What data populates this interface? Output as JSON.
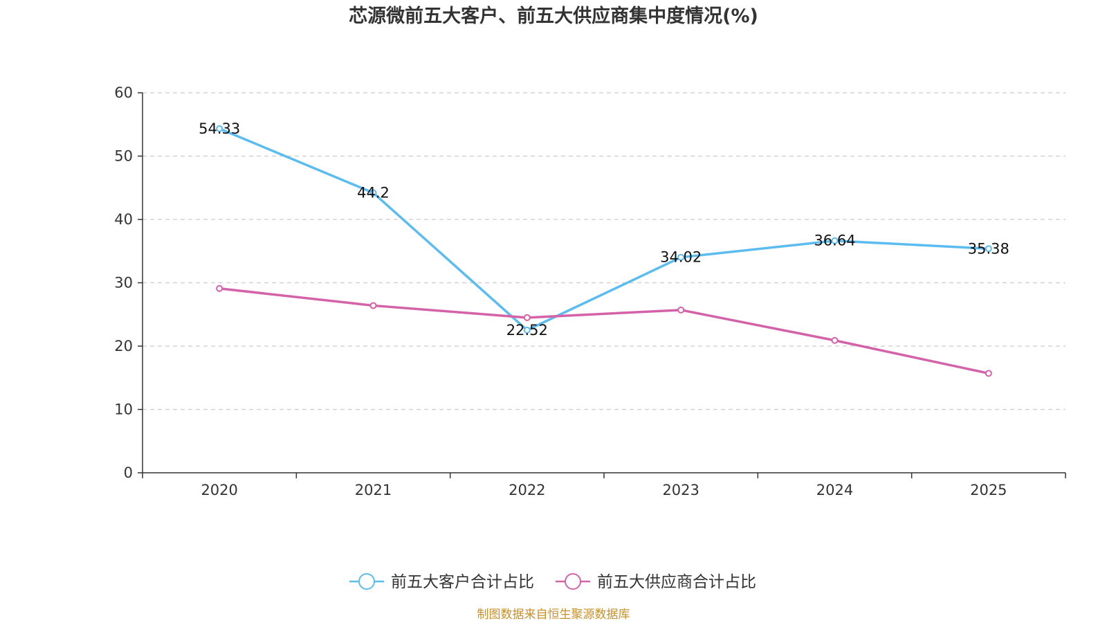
{
  "chart_data": {
    "type": "line",
    "title": "芯源微前五大客户、前五大供应商集中度情况(%)",
    "categories": [
      "2020",
      "2021",
      "2022",
      "2023",
      "2024",
      "2025"
    ],
    "ylim": [
      0,
      60
    ],
    "yticks": [
      0,
      10,
      20,
      30,
      40,
      50,
      60
    ],
    "grid": true,
    "legend_position": "bottom",
    "series": [
      {
        "name": "前五大客户合计占比",
        "color": "#5bbcf0",
        "values": [
          54.33,
          44.2,
          22.52,
          34.02,
          36.64,
          35.38
        ],
        "labels": [
          "54.33",
          "44.2",
          "22.52",
          "34.02",
          "36.64",
          "35.38"
        ]
      },
      {
        "name": "前五大供应商合计占比",
        "color": "#d462a8",
        "values": [
          29.1,
          26.4,
          24.5,
          25.7,
          20.9,
          15.7
        ]
      }
    ]
  },
  "source_note": "制图数据来自恒生聚源数据库",
  "source_color": "#c8902a"
}
